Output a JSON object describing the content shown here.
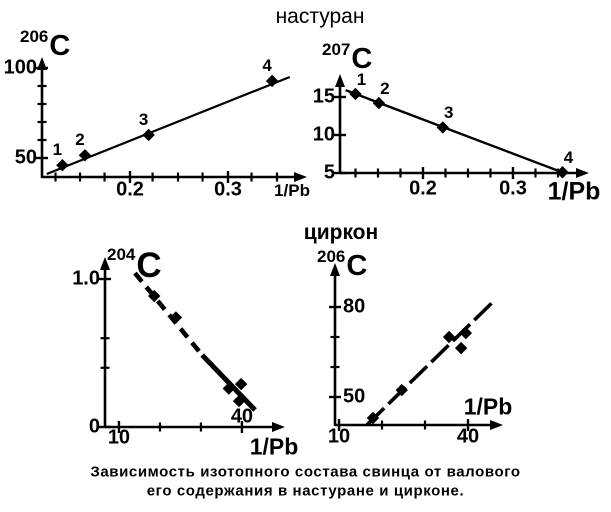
{
  "figure": {
    "title_top": "настуран",
    "title_bottom": "циркон",
    "caption_line1": "Зависимость изотопного состава свинца от валового",
    "caption_line2": "его содержания в настуране и цирконе."
  },
  "chart_data": [
    {
      "id": "nasturan-206",
      "group": "настуран",
      "type": "scatter",
      "isotope_sup": "206",
      "isotope_symbol": "C",
      "xlabel": "1/Pb",
      "xlim": [
        0.107,
        0.377
      ],
      "ylim": [
        39,
        105
      ],
      "xticks_major": [
        {
          "v": 0.2,
          "label": "0.2"
        },
        {
          "v": 0.3,
          "label": "0.3"
        }
      ],
      "xticks_minor": [
        0.124,
        0.149,
        0.174,
        0.223,
        0.249,
        0.274,
        0.324,
        0.35
      ],
      "yticks_major": [
        {
          "v": 50,
          "label": "50"
        },
        {
          "v": 100,
          "label": "100"
        }
      ],
      "yticks_minor": [
        60,
        70,
        80,
        90
      ],
      "points": [
        {
          "x": 0.131,
          "y": 46.0,
          "label": "1"
        },
        {
          "x": 0.154,
          "y": 51.5,
          "label": "2"
        },
        {
          "x": 0.219,
          "y": 62.8,
          "label": "3"
        },
        {
          "x": 0.345,
          "y": 92.8,
          "label": "4"
        }
      ],
      "trend_line": {
        "x1": 0.115,
        "y1": 41.1,
        "x2": 0.363,
        "y2": 95.0,
        "direction": "rising"
      }
    },
    {
      "id": "nasturan-207",
      "group": "настуран",
      "type": "scatter",
      "isotope_sup": "207",
      "isotope_symbol": "C",
      "xlabel": "1/Pb",
      "xlim": [
        0.108,
        0.385
      ],
      "ylim": [
        5,
        18.5
      ],
      "xticks_major": [
        {
          "v": 0.2,
          "label": "0.2"
        },
        {
          "v": 0.3,
          "label": "0.3"
        }
      ],
      "xticks_minor": [
        0.125,
        0.15,
        0.175,
        0.225,
        0.25,
        0.275,
        0.325,
        0.35
      ],
      "yticks_major": [
        {
          "v": 5,
          "label": "5"
        },
        {
          "v": 10,
          "label": "10"
        },
        {
          "v": 15,
          "label": "15"
        }
      ],
      "yticks_minor": [],
      "points": [
        {
          "x": 0.125,
          "y": 15.4,
          "label": "1"
        },
        {
          "x": 0.151,
          "y": 14.2,
          "label": "2"
        },
        {
          "x": 0.222,
          "y": 11.0,
          "label": "3"
        },
        {
          "x": 0.355,
          "y": 5.1,
          "label": "4"
        }
      ],
      "trend_line": {
        "x1": 0.114,
        "y1": 15.9,
        "x2": 0.359,
        "y2": 4.9,
        "direction": "falling"
      }
    },
    {
      "id": "zircon-204",
      "group": "циркон",
      "type": "scatter",
      "isotope_sup": "204",
      "isotope_symbol": "C",
      "xlabel": "1/Pb",
      "xlim": [
        6.6,
        44
      ],
      "ylim": [
        0,
        1.15
      ],
      "xticks_major": [
        {
          "v": 10,
          "label": "10",
          "label_pos": "below"
        },
        {
          "v": 40,
          "label": "40",
          "label_pos": "above"
        }
      ],
      "xticks_minor": [
        20,
        30
      ],
      "yticks_major": [
        {
          "v": 0,
          "label": "0"
        },
        {
          "v": 1.0,
          "label": "1.0"
        }
      ],
      "yticks_minor": [
        0.4,
        0.6
      ],
      "points": [
        {
          "x": 18.6,
          "y": 0.885
        },
        {
          "x": 23.9,
          "y": 0.74
        },
        {
          "x": 36.8,
          "y": 0.26
        },
        {
          "x": 39.8,
          "y": 0.29
        },
        {
          "x": 39.3,
          "y": 0.175
        }
      ],
      "trend_line": {
        "x1": 13.9,
        "y1": 1.04,
        "x2": 43.2,
        "y2": 0.115,
        "direction": "falling",
        "split_at": {
          "x": 30.3,
          "y": 0.486
        }
      }
    },
    {
      "id": "zircon-206",
      "group": "циркон",
      "type": "scatter",
      "isotope_sup": "206",
      "isotope_symbol": "C",
      "xlabel": "1/Pb",
      "xlim": [
        9.1,
        48
      ],
      "ylim": [
        40.7,
        95
      ],
      "xticks_major": [
        {
          "v": 10,
          "label": "10"
        },
        {
          "v": 40,
          "label": "40"
        }
      ],
      "xticks_minor": [
        20,
        30
      ],
      "yticks_major": [
        {
          "v": 50,
          "label": "50"
        },
        {
          "v": 80,
          "label": "80"
        }
      ],
      "yticks_minor": [
        60,
        70
      ],
      "points": [
        {
          "x": 17.9,
          "y": 43.0
        },
        {
          "x": 24.6,
          "y": 52.3
        },
        {
          "x": 35.6,
          "y": 70.0
        },
        {
          "x": 39.5,
          "y": 71.3
        },
        {
          "x": 38.4,
          "y": 66.3
        }
      ],
      "trend_line": {
        "x1": 16.5,
        "y1": 40.7,
        "x2": 45.8,
        "y2": 81.7,
        "direction": "rising"
      }
    }
  ]
}
